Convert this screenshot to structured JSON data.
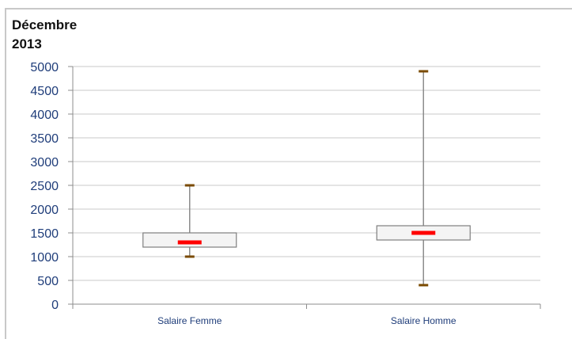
{
  "chart_data": {
    "type": "boxplot",
    "title_lines": [
      "Décembre",
      "2013"
    ],
    "xlabel": "",
    "ylabel": "",
    "ylim": [
      0,
      5000
    ],
    "yticks": [
      0,
      500,
      1000,
      1500,
      2000,
      2500,
      3000,
      3500,
      4000,
      4500,
      5000
    ],
    "grid": true,
    "categories": [
      "Salaire Femme",
      "Salaire Homme"
    ],
    "boxes": [
      {
        "category": "Salaire Femme",
        "min": 1000,
        "q1": 1200,
        "median": 1300,
        "q3": 1500,
        "max": 2500
      },
      {
        "category": "Salaire Homme",
        "min": 400,
        "q1": 1350,
        "median": 1500,
        "q3": 1650,
        "max": 4900
      }
    ],
    "colors": {
      "median": "#ff0000",
      "whisker_cap": "#7a4a00",
      "axis_text": "#1f3d7a",
      "box_fill": "#f4f4f4",
      "box_stroke": "#7f7f7f",
      "grid": "#c8c8c8"
    }
  }
}
